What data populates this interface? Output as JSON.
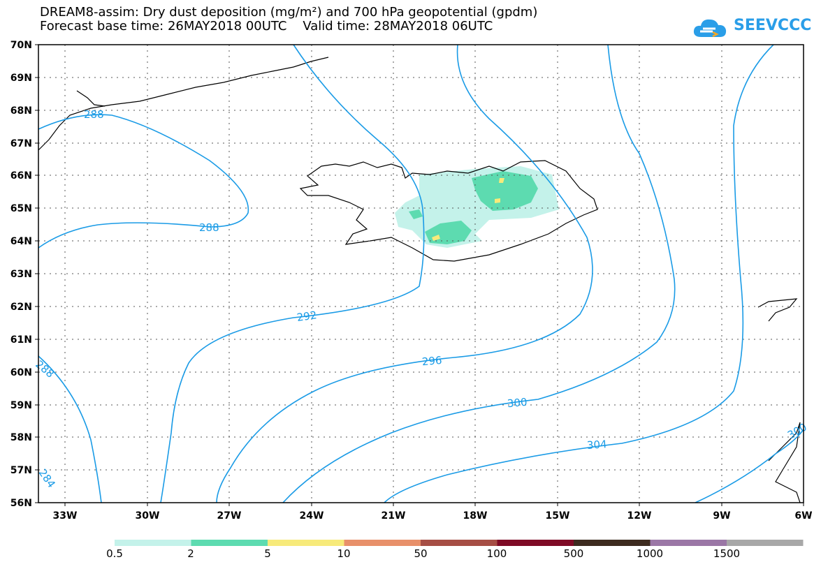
{
  "header": {
    "title_line1": "DREAM8-assim: Dry dust deposition (mg/m²) and 700 hPa geopotential (gpdm)",
    "title_line2": "Forecast base time: 26MAY2018 00UTC    Valid time: 28MAY2018 06UTC",
    "logo_text": "SEEVCCC"
  },
  "map": {
    "lat_labels": [
      "70N",
      "69N",
      "68N",
      "67N",
      "66N",
      "65N",
      "64N",
      "63N",
      "62N",
      "61N",
      "60N",
      "59N",
      "58N",
      "57N",
      "56N"
    ],
    "lon_labels": [
      "33W",
      "30W",
      "27W",
      "24W",
      "21W",
      "18W",
      "15W",
      "12W",
      "9W",
      "6W"
    ],
    "contour_color": "#1a9be6",
    "contour_labels": [
      {
        "text": "288",
        "anchor": "a"
      },
      {
        "text": "288",
        "anchor": "b"
      },
      {
        "text": "288",
        "anchor": "c"
      },
      {
        "text": "292",
        "anchor": "d"
      },
      {
        "text": "296",
        "anchor": "e"
      },
      {
        "text": "300",
        "anchor": "f"
      },
      {
        "text": "304",
        "anchor": "g"
      },
      {
        "text": "284",
        "anchor": "h"
      },
      {
        "text": "300",
        "anchor": "i"
      }
    ]
  },
  "legend": {
    "colors": [
      "#c4f2ea",
      "#5ddbb0",
      "#f7ea7a",
      "#e8906a",
      "#a64e45",
      "#7e0a25",
      "#3d2b1f",
      "#9b77a6",
      "#a8a8a8"
    ],
    "labels": [
      "0.5",
      "2",
      "5",
      "10",
      "50",
      "100",
      "500",
      "1000",
      "1500"
    ]
  }
}
